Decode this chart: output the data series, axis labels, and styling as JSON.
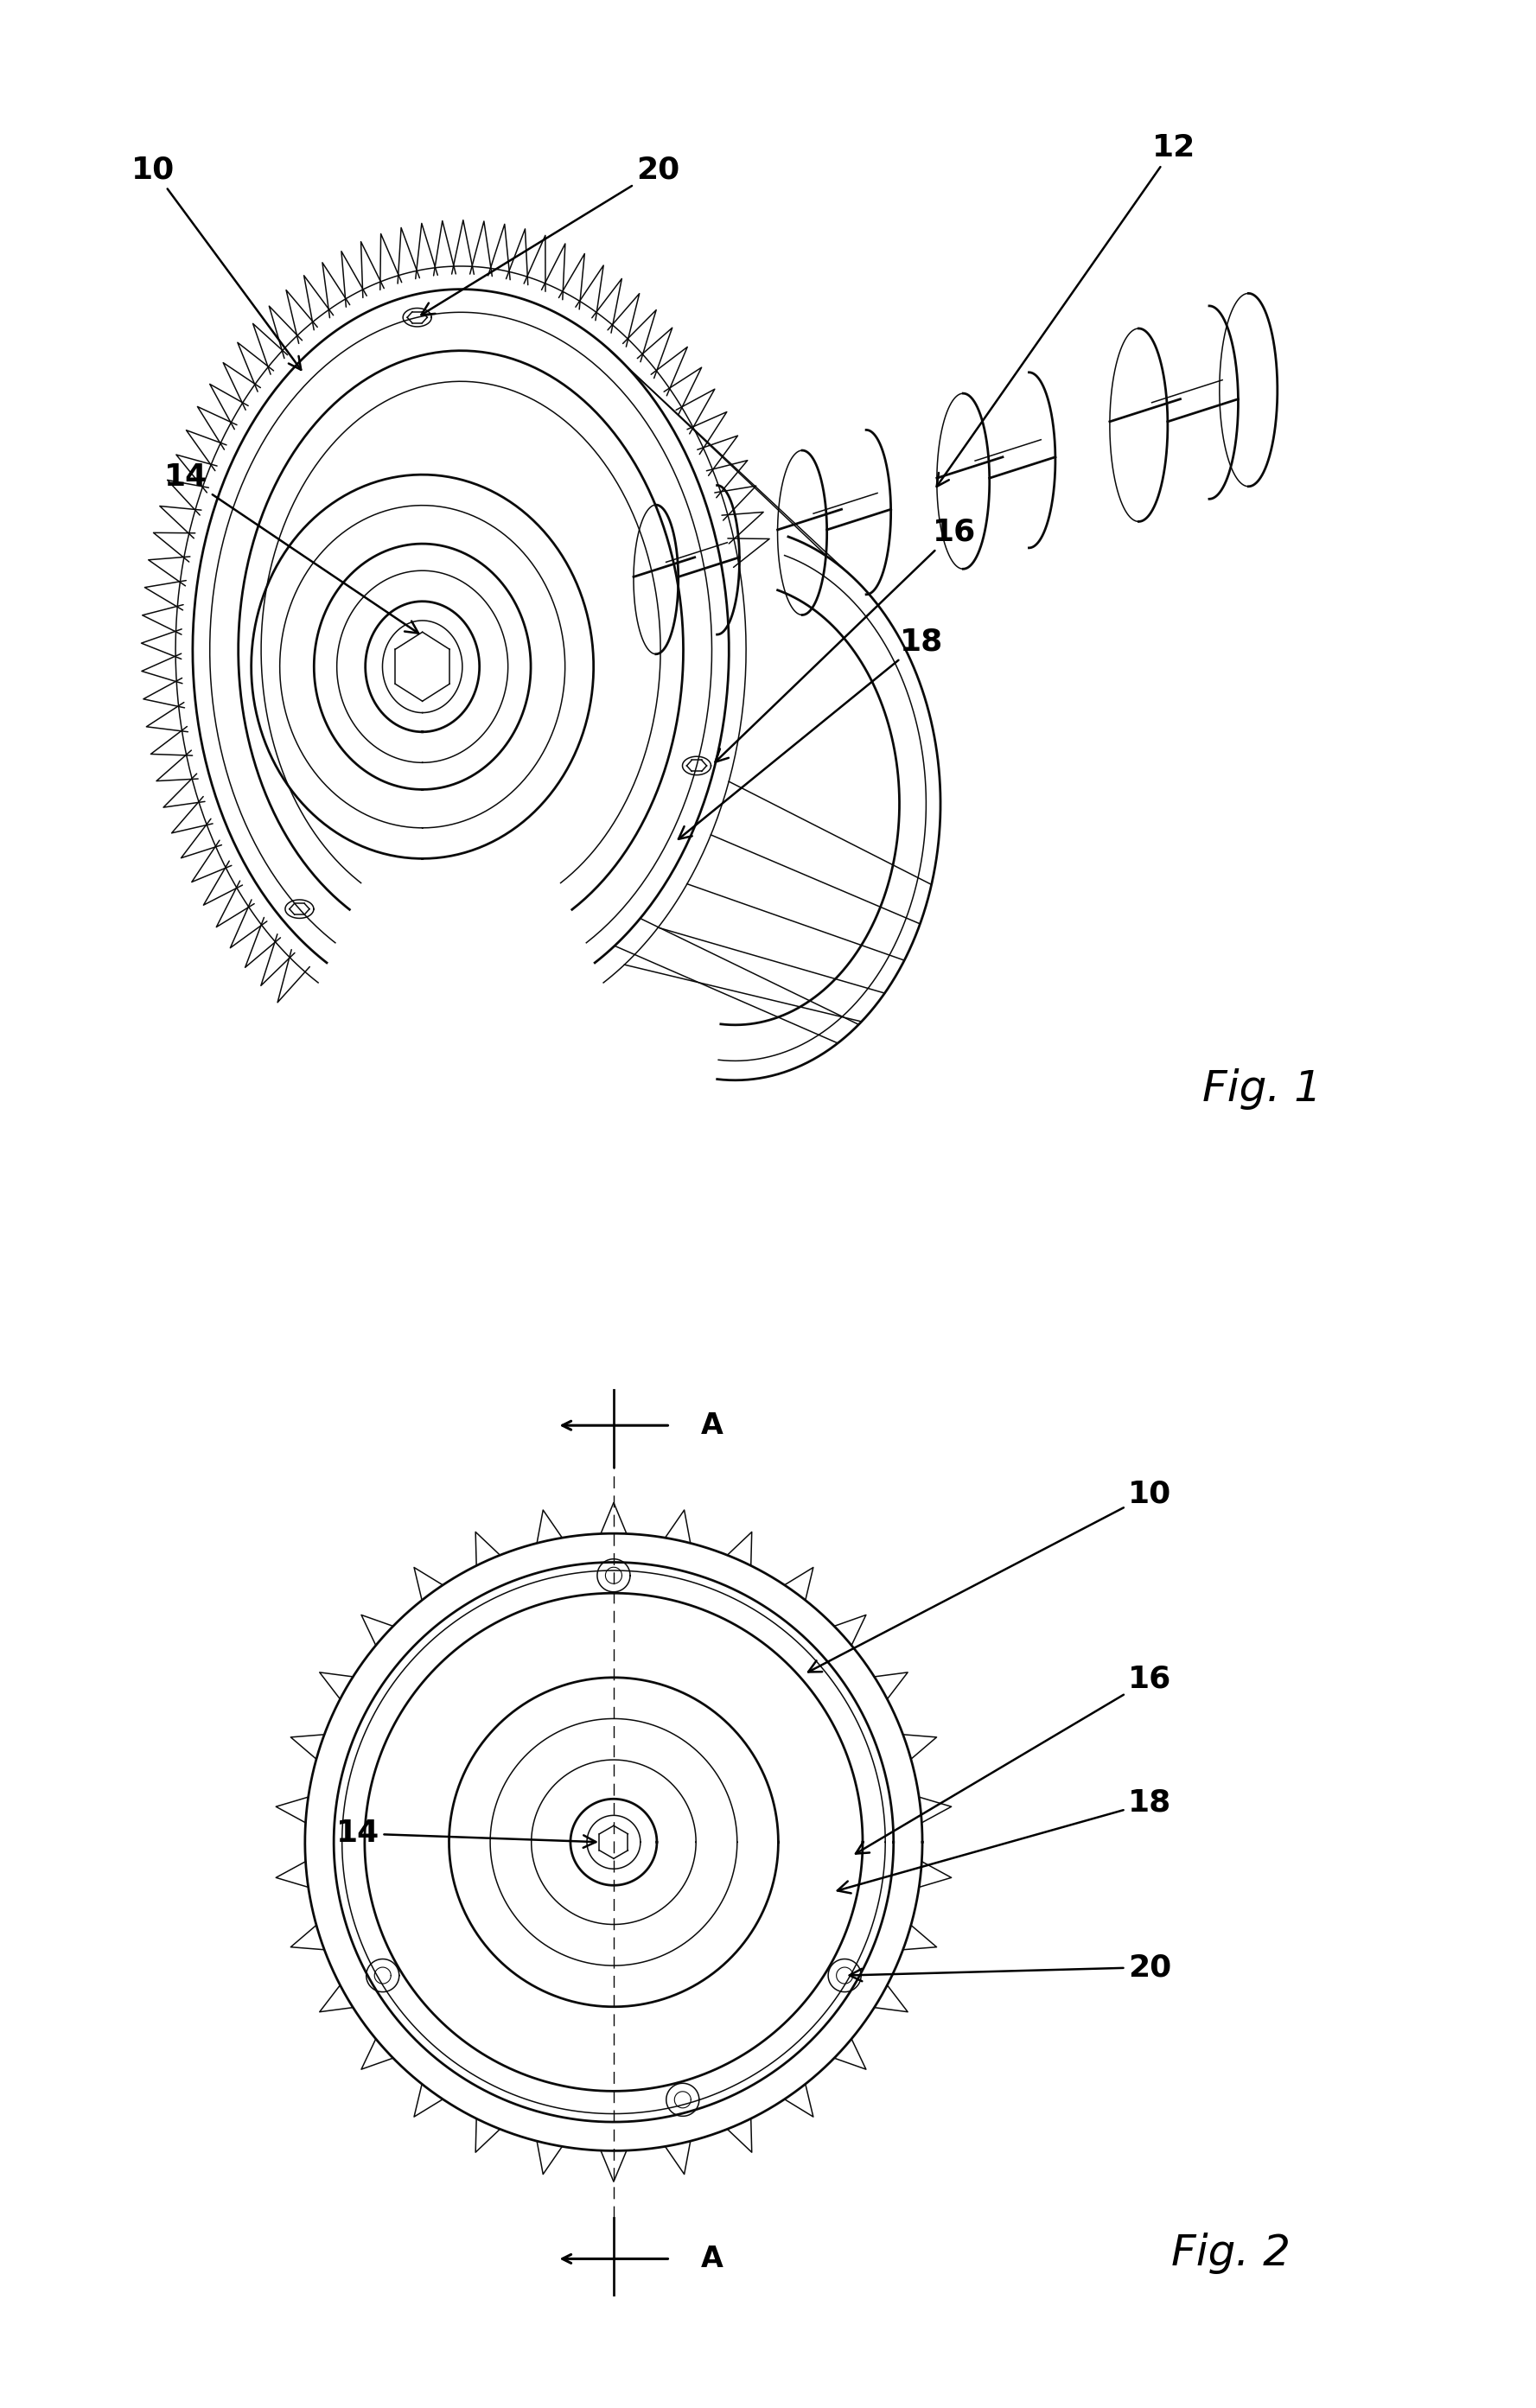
{
  "fig1_label": "Fig. 1",
  "fig2_label": "Fig. 2",
  "line_color": "#0a0a0a",
  "bg_color": "#ffffff",
  "text_color": "#000000",
  "lw_main": 2.0,
  "lw_thin": 1.1,
  "lw_med": 1.5
}
